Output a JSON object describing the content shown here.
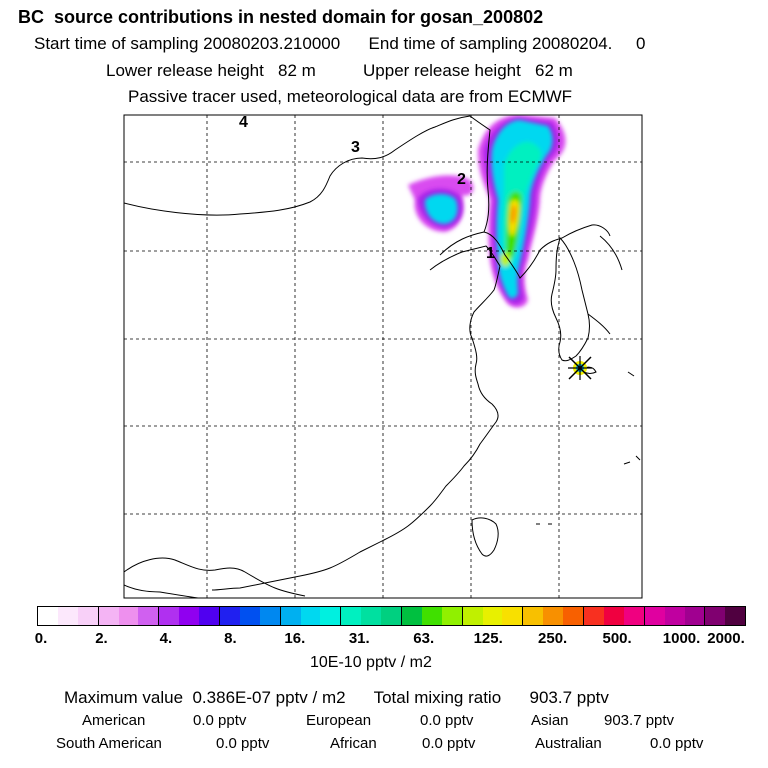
{
  "header": {
    "title": "BC  source contributions in nested domain for gosan_200802",
    "sampling": "Start time of sampling 20080203.210000      End time of sampling 20080204.     0",
    "release": "Lower release height   82 m          Upper release height   62 m",
    "note": "Passive tracer used, meteorological data are from ECMWF"
  },
  "map": {
    "grid_labels": [
      "4",
      "3",
      "2",
      "1"
    ],
    "receptor_marker": "sampling-site-star",
    "coastline_color": "#000000",
    "gridline_style": "dashed"
  },
  "colorbar": {
    "colors": [
      "#ffffff",
      "#fce8fc",
      "#f8d0f8",
      "#f4b4f4",
      "#ee90ee",
      "#d060f0",
      "#b030f0",
      "#9000f0",
      "#5000f0",
      "#2020f0",
      "#0050f0",
      "#0088f0",
      "#00b0f0",
      "#00d8f0",
      "#00f0e0",
      "#00f0c0",
      "#00e0a0",
      "#00d080",
      "#00c040",
      "#40e000",
      "#90f000",
      "#c0f000",
      "#e8f000",
      "#f8e000",
      "#f8c000",
      "#f89000",
      "#f86000",
      "#f83020",
      "#f00040",
      "#f00080",
      "#e000a0",
      "#c000a0",
      "#a00090",
      "#800070",
      "#500040"
    ],
    "tick_labels": [
      "0.",
      "2.",
      "4.",
      "8.",
      "16.",
      "31.",
      "63.",
      "125.",
      "250.",
      "500.",
      "1000.",
      "2000."
    ],
    "units": "10E-10 pptv / m2"
  },
  "stats": {
    "summary": "Maximum value  0.386E-07 pptv / m2      Total mixing ratio      903.7 pptv",
    "regions": [
      {
        "name": "American",
        "value": "0.0 pptv"
      },
      {
        "name": "European",
        "value": "0.0 pptv"
      },
      {
        "name": "Asian",
        "value": "903.7 pptv"
      },
      {
        "name": "South American",
        "value": "0.0 pptv"
      },
      {
        "name": "African",
        "value": "0.0 pptv"
      },
      {
        "name": "Australian",
        "value": "0.0 pptv"
      }
    ]
  }
}
